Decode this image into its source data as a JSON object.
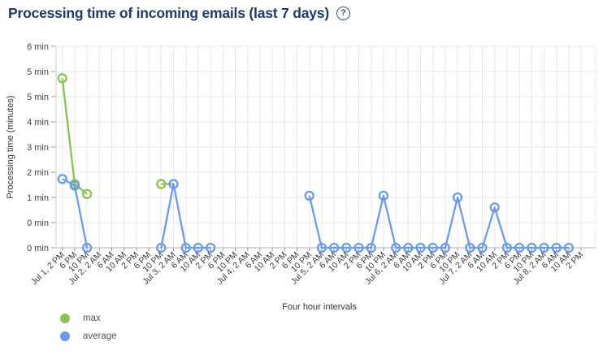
{
  "header": {
    "title": "Processing time of incoming emails (last 7 days)",
    "help_glyph": "?"
  },
  "chart_data": {
    "type": "line",
    "title": "Processing time of incoming emails (last 7 days)",
    "xlabel": "Four hour intervals",
    "ylabel": "Processing time (minutes)",
    "ylim": [
      0,
      6
    ],
    "y_tick_labels_top_to_bottom": [
      "6 min",
      "5 min",
      "5 min",
      "4 min",
      "3 min",
      "2 min",
      "1 min",
      "0 min",
      "0 min"
    ],
    "grid": true,
    "legend_position": "bottom-left",
    "marker": "open-circle",
    "categories": [
      "Jul 1, 2 PM",
      "6 PM",
      "10 PM",
      "Jul 2, 2 AM",
      "6 AM",
      "10 AM",
      "2 PM",
      "6 PM",
      "10 PM",
      "Jul 3, 2 AM",
      "6 AM",
      "10 AM",
      "2 PM",
      "6 PM",
      "10 PM",
      "Jul 4, 2 AM",
      "6 AM",
      "10 AM",
      "2 PM",
      "6 PM",
      "10 PM",
      "Jul 5, 2 AM",
      "6 AM",
      "10 AM",
      "2 PM",
      "6 PM",
      "10 PM",
      "Jul 6, 2 AM",
      "6 AM",
      "10 AM",
      "2 PM",
      "6 PM",
      "10 PM",
      "Jul 7, 2 AM",
      "6 AM",
      "10 AM",
      "2 PM",
      "6 PM",
      "10 PM",
      "Jul 8, 2 AM",
      "6 AM",
      "10 AM",
      "2 PM"
    ],
    "series": [
      {
        "name": "max",
        "color": "#8CC152",
        "values": [
          5.05,
          1.9,
          1.6,
          null,
          null,
          null,
          null,
          null,
          1.9,
          1.9,
          null,
          null,
          null,
          null,
          null,
          null,
          null,
          null,
          null,
          null,
          null,
          null,
          null,
          null,
          null,
          null,
          null,
          null,
          null,
          null,
          null,
          null,
          null,
          null,
          null,
          null,
          null,
          null,
          null,
          null,
          null,
          null,
          null
        ]
      },
      {
        "name": "average",
        "color": "#6C9BE8",
        "values": [
          2.05,
          1.85,
          0,
          null,
          null,
          null,
          null,
          null,
          0,
          1.9,
          0,
          0,
          0,
          null,
          null,
          null,
          null,
          null,
          null,
          null,
          1.55,
          0,
          0,
          0,
          0,
          0,
          1.55,
          0,
          0,
          0,
          0,
          0,
          1.5,
          0,
          0,
          1.2,
          0,
          0,
          0,
          0,
          0,
          0,
          null
        ]
      }
    ]
  }
}
